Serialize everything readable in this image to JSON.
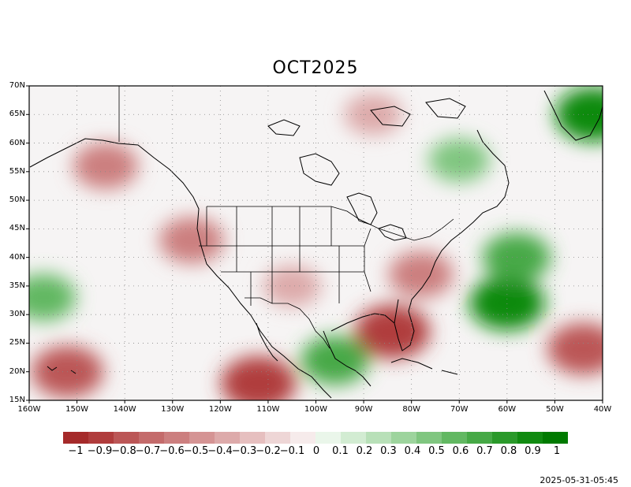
{
  "title": "OCT2025",
  "timestamp": "2025-05-31-05:45",
  "lat_labels": [
    "70N",
    "65N",
    "60N",
    "55N",
    "50N",
    "45N",
    "40N",
    "35N",
    "30N",
    "25N",
    "20N",
    "15N"
  ],
  "lon_labels": [
    "160W",
    "150W",
    "140W",
    "130W",
    "120W",
    "110W",
    "100W",
    "90W",
    "80W",
    "70W",
    "60W",
    "50W",
    "40W"
  ],
  "colorbar": {
    "labels": [
      "−1",
      "−0.9",
      "−0.8",
      "−0.7",
      "−0.6",
      "−0.5",
      "−0.4",
      "−0.3",
      "−0.2",
      "−0.1",
      "0",
      "0.1",
      "0.2",
      "0.3",
      "0.4",
      "0.5",
      "0.6",
      "0.7",
      "0.8",
      "0.9",
      "1"
    ],
    "colors": [
      "#a52a2a",
      "#b03c3c",
      "#bb5656",
      "#c46b6b",
      "#cc7f7f",
      "#d59494",
      "#ddaaaa",
      "#e6bfbf",
      "#eed6d6",
      "#f6ebeb",
      "#fbfbfb",
      "#eaf6ea",
      "#d2ecd2",
      "#b8e0b8",
      "#9dd49d",
      "#80c680",
      "#62b862",
      "#46a946",
      "#2a992a",
      "#108a10",
      "#007a00"
    ]
  },
  "map": {
    "region": "North America",
    "lat_range": [
      15,
      70
    ],
    "lon_range": [
      -160,
      -40
    ],
    "gridlines": "dotted",
    "anomaly_regions": [
      {
        "lon": -144,
        "lat": 56,
        "value": -0.6
      },
      {
        "lon": -152,
        "lat": 20,
        "value": -0.8
      },
      {
        "lon": -112,
        "lat": 18,
        "value": -0.9
      },
      {
        "lon": -84,
        "lat": 27,
        "value": -0.9
      },
      {
        "lon": -78,
        "lat": 37,
        "value": -0.6
      },
      {
        "lon": -44,
        "lat": 24,
        "value": -0.8
      },
      {
        "lon": -60,
        "lat": 32,
        "value": 0.9
      },
      {
        "lon": -58,
        "lat": 40,
        "value": 0.7
      },
      {
        "lon": -42,
        "lat": 65,
        "value": 0.9
      },
      {
        "lon": -157,
        "lat": 33,
        "value": 0.6
      },
      {
        "lon": -96,
        "lat": 22,
        "value": 0.7
      },
      {
        "lon": -105,
        "lat": 35,
        "value": -0.4
      },
      {
        "lon": -88,
        "lat": 65,
        "value": -0.4
      },
      {
        "lon": -126,
        "lat": 43,
        "value": -0.6
      },
      {
        "lon": -70,
        "lat": 57,
        "value": 0.5
      }
    ]
  }
}
